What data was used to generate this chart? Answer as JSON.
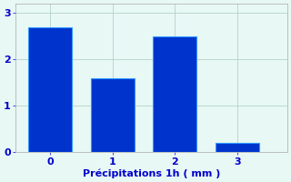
{
  "categories": [
    0,
    1,
    2,
    3
  ],
  "values": [
    2.7,
    1.6,
    2.5,
    0.2
  ],
  "bar_color": "#0033cc",
  "bar_edge_color": "#3399ff",
  "background_color": "#e8f8f5",
  "grid_color": "#aaccbb",
  "xlabel": "Précipitations 1h ( mm )",
  "xlabel_color": "#0000cc",
  "tick_color": "#0000cc",
  "ylim_max": 3.2,
  "yticks": [
    0,
    1,
    2,
    3
  ],
  "bar_width": 0.7,
  "xlabel_fontsize": 8,
  "tick_fontsize": 8,
  "xlim_min": -0.55,
  "xlim_max": 3.8
}
